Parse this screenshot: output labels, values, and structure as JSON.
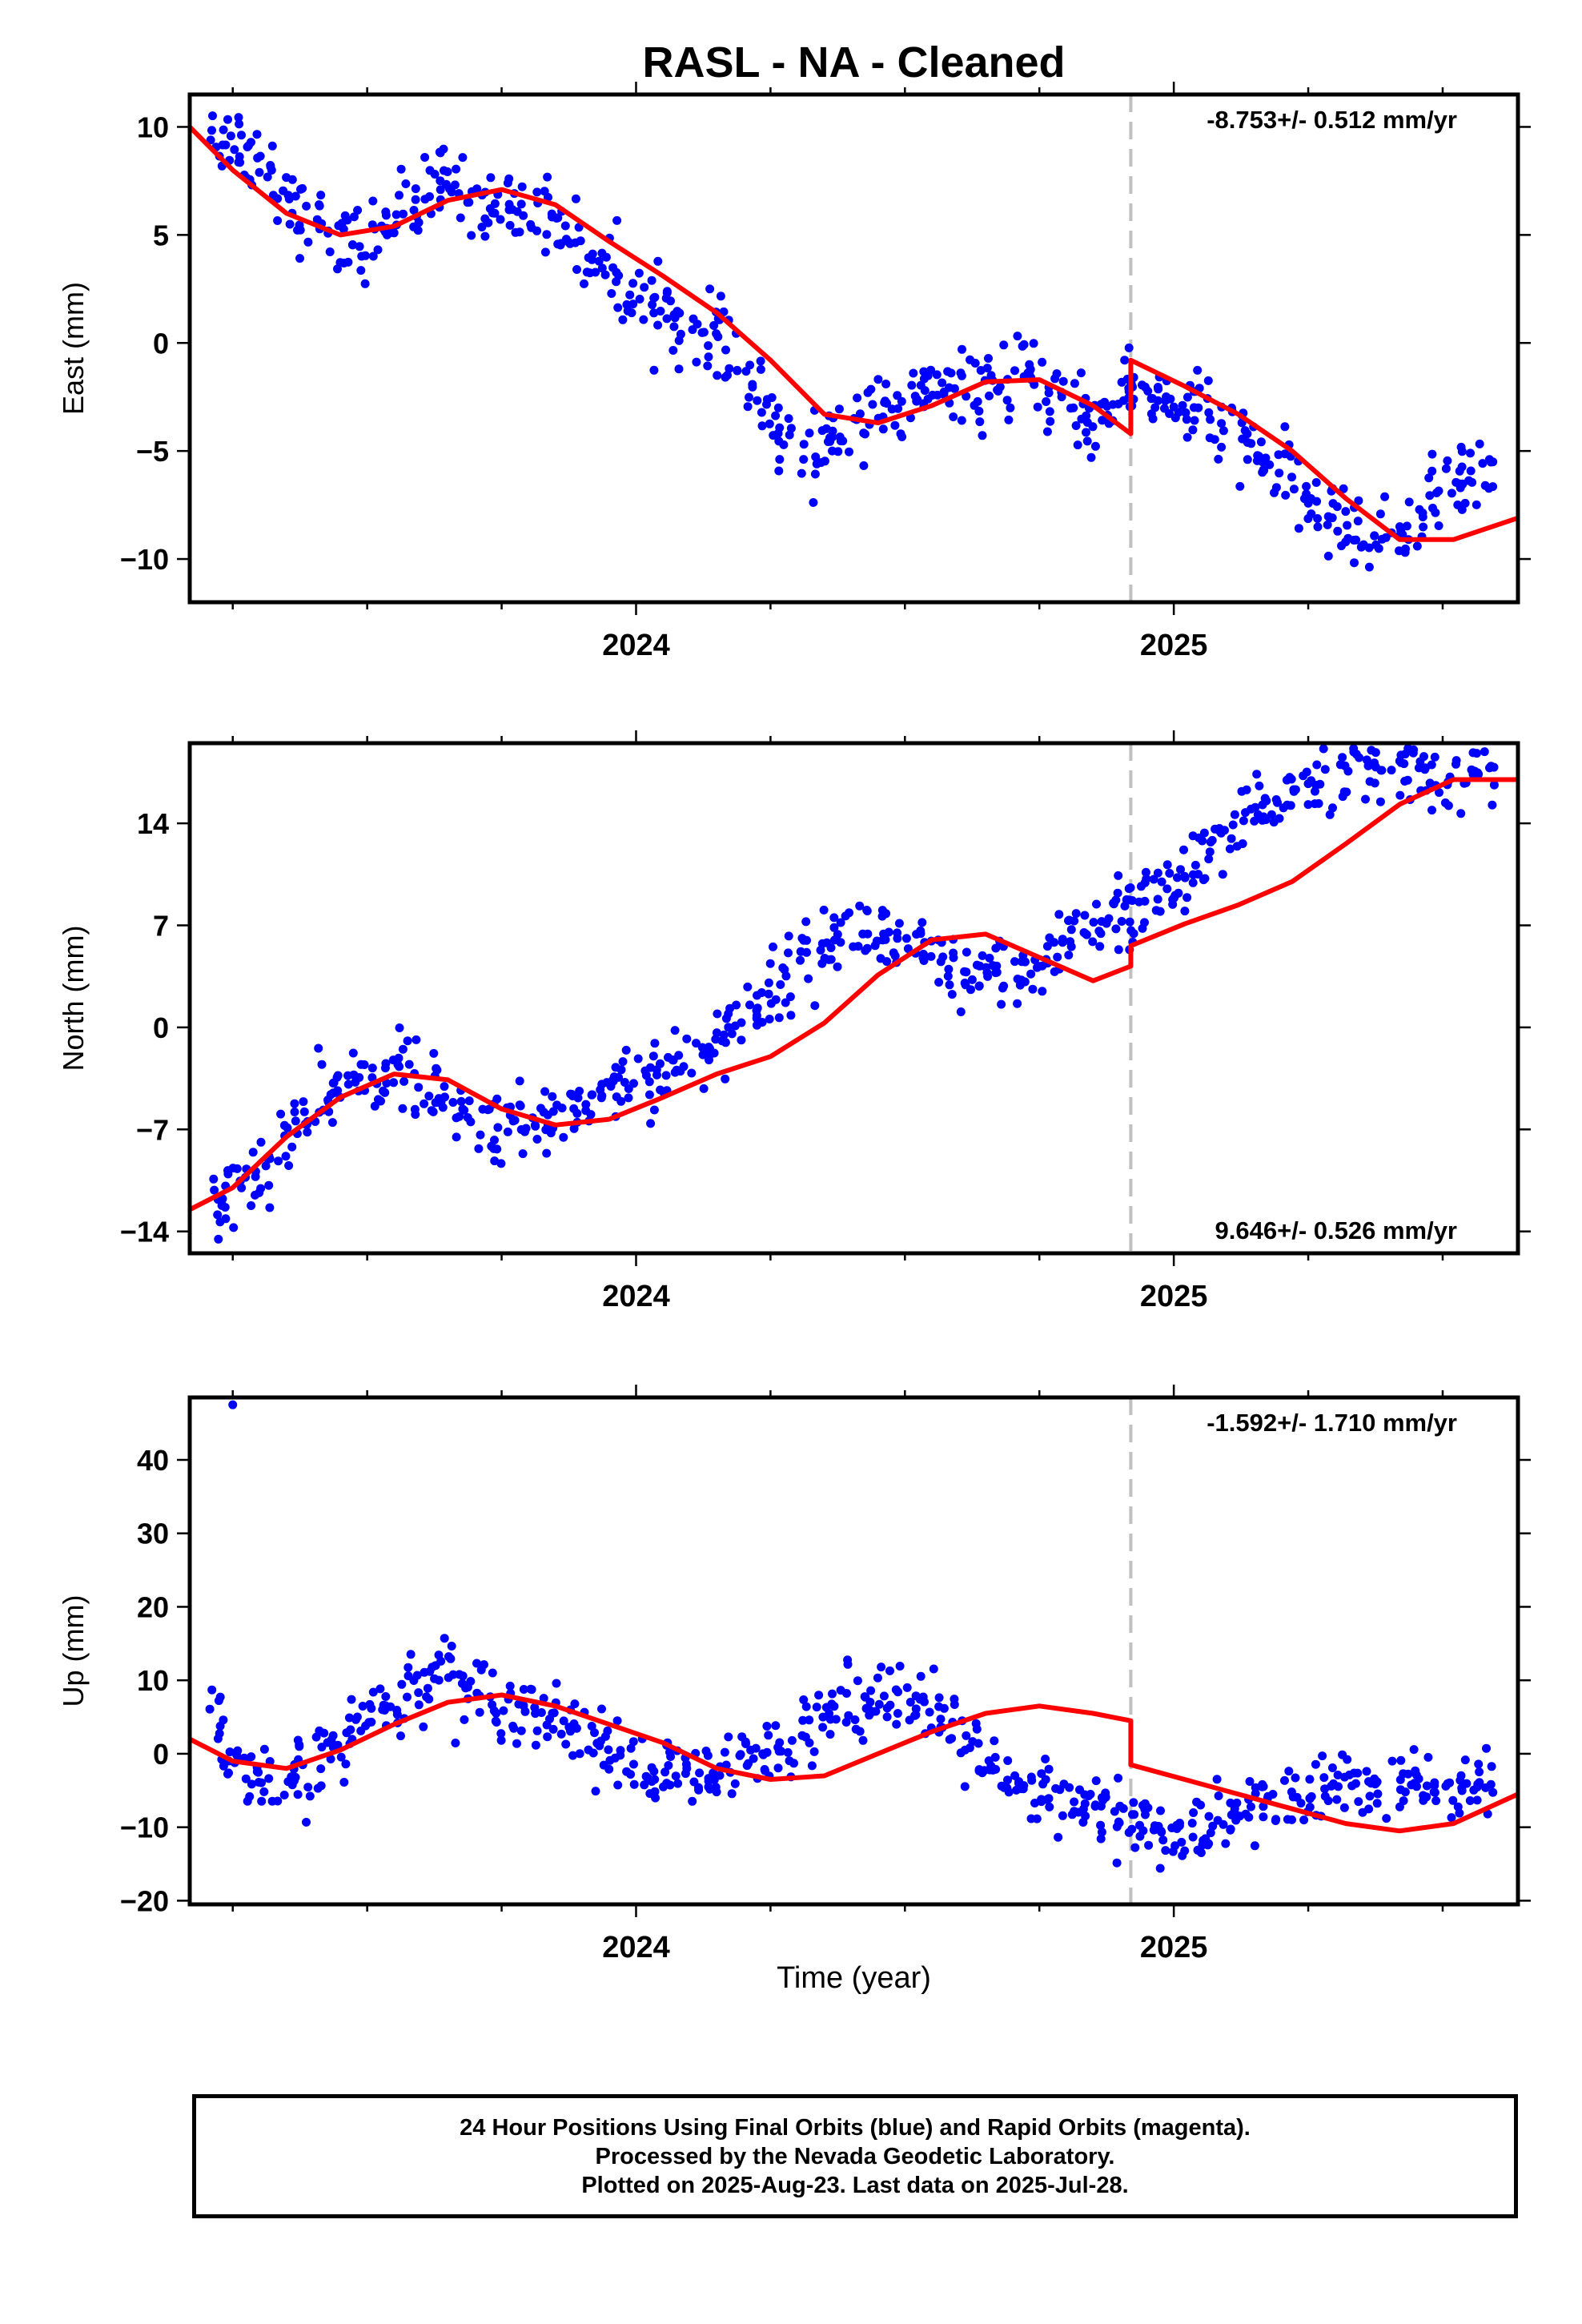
{
  "title": "RASL  - NA - Cleaned",
  "xlabel": "Time (year)",
  "x_ticks": [
    2024,
    2025
  ],
  "x_range": [
    2023.17,
    2025.64
  ],
  "offset_epoch": 2024.92,
  "colors": {
    "points": "#0000ff",
    "fit": "#ff0000",
    "offset_line": "#c0c0c0"
  },
  "caption": {
    "line1": "24 Hour Positions Using Final Orbits (blue) and Rapid Orbits (magenta).",
    "line2": "Processed by the Nevada Geodetic Laboratory.",
    "line3": "Plotted on 2025-Aug-23. Last data on 2025-Jul-28."
  },
  "chart_data": [
    {
      "type": "scatter",
      "ylabel": "East (mm)",
      "ylim": [
        -12,
        11.5
      ],
      "yticks": [
        10,
        5,
        0,
        -5,
        -10
      ],
      "rate_label": "-8.753+/- 0.512 mm/yr",
      "rate_position": "top-right",
      "series": [
        {
          "kind": "points",
          "x": [
            2023.22,
            2023.25,
            2023.28,
            2023.31,
            2023.35,
            2023.38,
            2023.42,
            2023.45,
            2023.48,
            2023.52,
            2023.55,
            2023.58,
            2023.62,
            2023.65,
            2023.68,
            2023.72,
            2023.75,
            2023.78,
            2023.82,
            2023.85,
            2023.88,
            2023.92,
            2023.95,
            2023.98,
            2024.02,
            2024.05,
            2024.08,
            2024.12,
            2024.15,
            2024.18,
            2024.22,
            2024.25,
            2024.28,
            2024.32,
            2024.35,
            2024.38,
            2024.42,
            2024.45,
            2024.48,
            2024.52,
            2024.55,
            2024.58,
            2024.62,
            2024.65,
            2024.68,
            2024.72,
            2024.75,
            2024.78,
            2024.82,
            2024.85,
            2024.88,
            2024.91,
            2024.93,
            2024.96,
            2024.99,
            2025.02,
            2025.05,
            2025.08,
            2025.12,
            2025.15,
            2025.18,
            2025.22,
            2025.25,
            2025.28,
            2025.32,
            2025.35,
            2025.38,
            2025.42,
            2025.45,
            2025.48,
            2025.52,
            2025.55,
            2025.58
          ],
          "y": [
            9.5,
            9.6,
            8.6,
            8.3,
            7.0,
            5.9,
            5.5,
            4.4,
            4.6,
            5.2,
            5.8,
            6.3,
            7.0,
            7.6,
            6.8,
            6.5,
            6.2,
            6.4,
            6.1,
            5.5,
            4.9,
            4.0,
            3.3,
            2.5,
            2.0,
            1.6,
            0.8,
            0.2,
            0.6,
            -0.8,
            -1.9,
            -3.5,
            -4.6,
            -5.4,
            -4.8,
            -4.0,
            -3.3,
            -3.1,
            -3.5,
            -2.6,
            -2.0,
            -2.4,
            -2.1,
            -2.3,
            -1.8,
            -1.6,
            -2.0,
            -2.5,
            -3.2,
            -3.8,
            -3.3,
            -1.8,
            -2.0,
            -2.5,
            -2.6,
            -3.1,
            -3.0,
            -4.1,
            -4.3,
            -5.1,
            -5.7,
            -6.4,
            -7.3,
            -7.9,
            -8.7,
            -8.6,
            -9.1,
            -8.8,
            -8.0,
            -7.2,
            -6.5,
            -6.2,
            -6.0
          ]
        },
        {
          "kind": "fit",
          "x": [
            2023.17,
            2023.25,
            2023.35,
            2023.45,
            2023.55,
            2023.65,
            2023.75,
            2023.85,
            2023.95,
            2024.05,
            2024.15,
            2024.25,
            2024.35,
            2024.45,
            2024.55,
            2024.65,
            2024.75,
            2024.85,
            2024.92,
            2024.92,
            2025.02,
            2025.12,
            2025.22,
            2025.32,
            2025.42,
            2025.52,
            2025.64
          ],
          "y": [
            10.0,
            8.0,
            6.0,
            5.0,
            5.4,
            6.6,
            7.1,
            6.4,
            4.7,
            3.1,
            1.4,
            -0.8,
            -3.3,
            -3.7,
            -2.9,
            -1.8,
            -1.7,
            -2.9,
            -4.2,
            -0.8,
            -2.0,
            -3.3,
            -5.0,
            -7.2,
            -9.1,
            -9.1,
            -8.1
          ]
        }
      ]
    },
    {
      "type": "scatter",
      "ylabel": "North (mm)",
      "ylim": [
        -15.5,
        19.5
      ],
      "yticks": [
        14,
        7,
        0,
        -7,
        -14
      ],
      "rate_label": "9.646+/- 0.526 mm/yr",
      "rate_position": "bottom-right",
      "series": [
        {
          "kind": "points",
          "x": [
            2023.22,
            2023.25,
            2023.28,
            2023.31,
            2023.35,
            2023.38,
            2023.42,
            2023.45,
            2023.48,
            2023.52,
            2023.55,
            2023.58,
            2023.62,
            2023.65,
            2023.68,
            2023.72,
            2023.75,
            2023.78,
            2023.82,
            2023.85,
            2023.88,
            2023.92,
            2023.95,
            2023.98,
            2024.02,
            2024.05,
            2024.08,
            2024.12,
            2024.15,
            2024.18,
            2024.22,
            2024.25,
            2024.28,
            2024.32,
            2024.35,
            2024.38,
            2024.42,
            2024.45,
            2024.48,
            2024.52,
            2024.55,
            2024.58,
            2024.62,
            2024.65,
            2024.68,
            2024.72,
            2024.75,
            2024.78,
            2024.82,
            2024.85,
            2024.88,
            2024.91,
            2024.93,
            2024.96,
            2024.99,
            2025.02,
            2025.05,
            2025.08,
            2025.12,
            2025.15,
            2025.18,
            2025.22,
            2025.25,
            2025.28,
            2025.32,
            2025.35,
            2025.38,
            2025.42,
            2025.45,
            2025.48,
            2025.52,
            2025.55,
            2025.58
          ],
          "y": [
            -12.0,
            -11.5,
            -10.6,
            -9.4,
            -7.8,
            -6.5,
            -5.3,
            -4.4,
            -3.6,
            -3.0,
            -2.9,
            -3.4,
            -4.5,
            -5.4,
            -6.2,
            -6.6,
            -6.9,
            -6.8,
            -6.5,
            -6.0,
            -5.5,
            -4.8,
            -4.0,
            -3.5,
            -3.1,
            -2.9,
            -2.5,
            -2.0,
            -1.1,
            0.3,
            1.6,
            2.6,
            3.6,
            4.7,
            5.8,
            6.5,
            6.8,
            6.4,
            5.7,
            5.0,
            4.3,
            3.9,
            3.3,
            3.1,
            3.2,
            3.5,
            4.2,
            5.8,
            6.3,
            7.0,
            7.5,
            7.8,
            8.3,
            8.9,
            9.4,
            10.2,
            11.0,
            12.3,
            13.4,
            14.6,
            15.6,
            16.5,
            17.3,
            17.8,
            17.5,
            17.6,
            17.8,
            17.7,
            17.6,
            17.5,
            17.5,
            17.5,
            17.5
          ]
        },
        {
          "kind": "fit",
          "x": [
            2023.17,
            2023.25,
            2023.35,
            2023.45,
            2023.55,
            2023.65,
            2023.75,
            2023.85,
            2023.95,
            2024.05,
            2024.15,
            2024.25,
            2024.35,
            2024.45,
            2024.55,
            2024.65,
            2024.75,
            2024.85,
            2024.92,
            2024.92,
            2025.02,
            2025.12,
            2025.22,
            2025.32,
            2025.42,
            2025.52,
            2025.64
          ],
          "y": [
            -12.5,
            -11.0,
            -7.5,
            -4.8,
            -3.2,
            -3.6,
            -5.6,
            -6.7,
            -6.3,
            -4.8,
            -3.2,
            -2.0,
            0.3,
            3.6,
            6.0,
            6.4,
            4.8,
            3.2,
            4.2,
            5.6,
            7.1,
            8.4,
            10.0,
            12.6,
            15.3,
            17.0,
            17.0
          ]
        }
      ]
    },
    {
      "type": "scatter",
      "ylabel": "Up (mm)",
      "ylim": [
        -20.5,
        48.5
      ],
      "yticks": [
        40,
        30,
        20,
        10,
        0,
        -10,
        -20
      ],
      "rate_label": "-1.592+/- 1.710 mm/yr",
      "rate_position": "top-right",
      "series": [
        {
          "kind": "points",
          "x": [
            2023.22,
            2023.25,
            2023.28,
            2023.31,
            2023.35,
            2023.38,
            2023.42,
            2023.45,
            2023.48,
            2023.52,
            2023.55,
            2023.58,
            2023.62,
            2023.65,
            2023.68,
            2023.72,
            2023.75,
            2023.78,
            2023.82,
            2023.85,
            2023.88,
            2023.92,
            2023.95,
            2023.98,
            2024.02,
            2024.05,
            2024.08,
            2024.12,
            2024.15,
            2024.18,
            2024.22,
            2024.25,
            2024.28,
            2024.32,
            2024.35,
            2024.38,
            2024.42,
            2024.45,
            2024.48,
            2024.52,
            2024.55,
            2024.58,
            2024.62,
            2024.65,
            2024.68,
            2024.72,
            2024.75,
            2024.78,
            2024.82,
            2024.85,
            2024.88,
            2024.91,
            2024.93,
            2024.96,
            2024.99,
            2025.02,
            2025.05,
            2025.08,
            2025.12,
            2025.15,
            2025.18,
            2025.22,
            2025.25,
            2025.28,
            2025.32,
            2025.35,
            2025.38,
            2025.42,
            2025.45,
            2025.48,
            2025.52,
            2025.55,
            2025.58
          ],
          "y": [
            5.0,
            -1.5,
            -4.0,
            -4.8,
            -4.5,
            -3.0,
            -1.0,
            1.5,
            3.5,
            5.5,
            7.5,
            8.5,
            10.5,
            12.0,
            9.5,
            8.0,
            7.0,
            6.5,
            6.0,
            5.0,
            4.0,
            2.0,
            0.5,
            -1.5,
            -2.5,
            -3.0,
            -3.5,
            -3.5,
            -3.0,
            -2.5,
            -1.0,
            0.5,
            2.0,
            4.0,
            5.5,
            6.5,
            7.5,
            9.0,
            8.0,
            6.5,
            5.0,
            3.5,
            1.5,
            -1.0,
            -4.5,
            -5.5,
            -6.0,
            -6.5,
            -7.0,
            -7.5,
            -8.0,
            -9.0,
            -9.5,
            -10.0,
            -10.5,
            -11.0,
            -10.5,
            -9.5,
            -8.5,
            -7.5,
            -6.5,
            -6.0,
            -5.5,
            -5.0,
            -4.5,
            -4.5,
            -4.5,
            -4.5,
            -4.5,
            -4.5,
            -4.5,
            -4.5,
            -4.5
          ]
        },
        {
          "kind": "fit",
          "x": [
            2023.17,
            2023.25,
            2023.35,
            2023.45,
            2023.55,
            2023.65,
            2023.75,
            2023.85,
            2023.95,
            2024.05,
            2024.15,
            2024.25,
            2024.35,
            2024.45,
            2024.55,
            2024.65,
            2024.75,
            2024.85,
            2024.92,
            2024.92,
            2025.02,
            2025.12,
            2025.22,
            2025.32,
            2025.42,
            2025.52,
            2025.64
          ],
          "y": [
            2.0,
            -1.0,
            -2.0,
            0.5,
            4.0,
            7.0,
            8.0,
            6.5,
            4.0,
            1.5,
            -2.0,
            -3.5,
            -3.0,
            0.0,
            3.0,
            5.5,
            6.5,
            5.5,
            4.5,
            -1.5,
            -3.5,
            -5.5,
            -7.5,
            -9.5,
            -10.5,
            -9.5,
            -5.5
          ]
        }
      ]
    }
  ]
}
